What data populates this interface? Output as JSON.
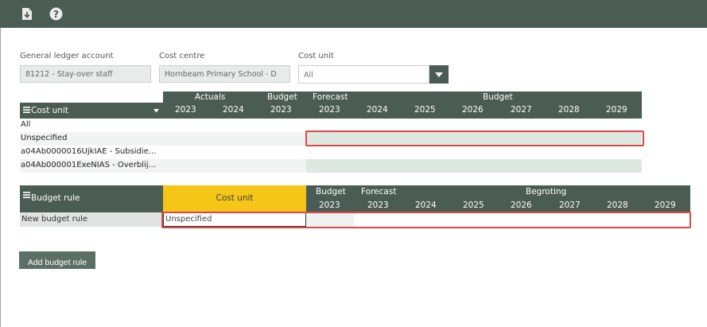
{
  "filters": {
    "gl_label": "General ledger account",
    "gl_value": "81212 - Stay-over staff",
    "cc_label": "Cost centre",
    "cc_value": "Hornbeam Primary School - D",
    "cu_label": "Cost unit",
    "cu_value": "All"
  },
  "top_table": {
    "row_header": "Cost unit",
    "groups": {
      "actuals": "Actuals",
      "budget1": "Budget",
      "forecast": "Forecast",
      "budget2": "Budget"
    },
    "years": [
      "2023",
      "2024",
      "2023",
      "2023",
      "2024",
      "2025",
      "2026",
      "2027",
      "2028",
      "2029"
    ],
    "rows": [
      "All",
      "Unspecified",
      "a04Ab0000016UjkIAE - Subsidie...",
      "a04Ab000001ExeNIAS - Overblij..."
    ]
  },
  "rules_table": {
    "row_header": "Budget rule",
    "cost_unit_header": "Cost unit",
    "groups": {
      "budget": "Budget",
      "forecast": "Forecast",
      "begroting": "Begroting"
    },
    "years": [
      "2023",
      "2023",
      "2024",
      "2025",
      "2026",
      "2027",
      "2028",
      "2029"
    ],
    "row_label": "New budget rule",
    "row_cost_unit": "Unspecified"
  },
  "add_button": "Add budget rule",
  "colors": {
    "header": "#4a5c54",
    "highlight": "#f5c518",
    "forecast_cell": "#dde8e0",
    "redbox": "#e04848"
  },
  "icons": [
    "download-icon",
    "help-icon",
    "menu-icon",
    "dropdown-arrow-icon"
  ]
}
